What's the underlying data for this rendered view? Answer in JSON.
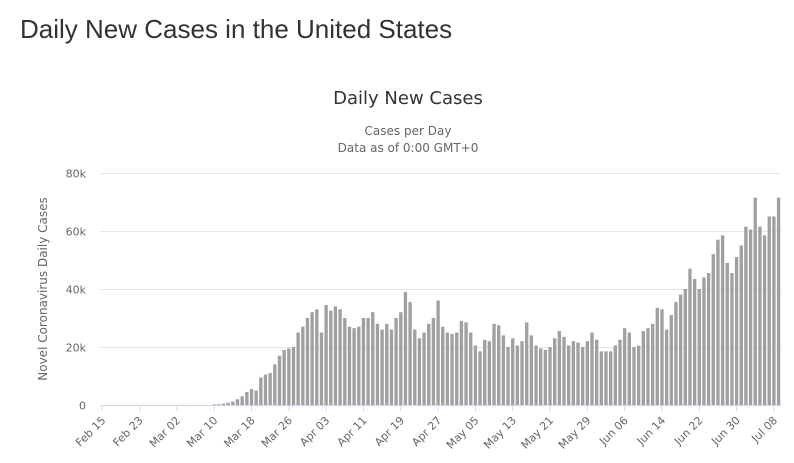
{
  "page": {
    "heading": "Daily New Cases in the United States"
  },
  "chart_data": {
    "type": "bar",
    "title": "Daily New Cases",
    "subtitle_lines": [
      "Cases per Day",
      "Data as of 0:00 GMT+0"
    ],
    "xlabel": "",
    "ylabel": "Novel Coronavirus Daily Cases",
    "ylim": [
      0,
      80000
    ],
    "yticks": [
      0,
      20000,
      40000,
      60000,
      80000
    ],
    "ytick_labels": [
      "0",
      "20k",
      "40k",
      "60k",
      "80k"
    ],
    "grid": true,
    "bar_color": "#a0a0a0",
    "grid_color": "#e6e6e6",
    "start_date": "Feb 15",
    "xtick_labels": [
      "Feb 15",
      "Feb 23",
      "Mar 02",
      "Mar 10",
      "Mar 18",
      "Mar 26",
      "Apr 03",
      "Apr 11",
      "Apr 19",
      "Apr 27",
      "May 05",
      "May 13",
      "May 21",
      "May 29",
      "Jun 06",
      "Jun 14",
      "Jun 22",
      "Jun 30",
      "Jul 08"
    ],
    "xtick_every_days": 8,
    "values": [
      0,
      0,
      0,
      0,
      0,
      0,
      0,
      0,
      0,
      0,
      0,
      0,
      0,
      0,
      0,
      0,
      0,
      0,
      0,
      0,
      0,
      0,
      0,
      0,
      200,
      300,
      500,
      800,
      1200,
      2000,
      3000,
      4500,
      5500,
      5000,
      9500,
      10500,
      11000,
      14000,
      17000,
      19000,
      19500,
      20000,
      25000,
      27000,
      30000,
      32000,
      33000,
      25000,
      34500,
      32500,
      34000,
      33000,
      30000,
      27000,
      26500,
      27000,
      30000,
      30000,
      32000,
      28000,
      26000,
      28000,
      26000,
      30000,
      32000,
      39000,
      35500,
      26000,
      23000,
      25000,
      28000,
      30000,
      36000,
      27000,
      25000,
      24500,
      25000,
      29000,
      28500,
      25000,
      20500,
      18500,
      22500,
      22000,
      28000,
      27500,
      24000,
      20000,
      23000,
      20500,
      22000,
      28500,
      24000,
      20500,
      19500,
      19000,
      20000,
      23000,
      25500,
      23500,
      20500,
      22000,
      21500,
      20000,
      22000,
      25000,
      22500,
      18500,
      18500,
      18500,
      20500,
      22500,
      26500,
      25000,
      20000,
      20500,
      25500,
      26500,
      28000,
      33500,
      33000,
      26000,
      31000,
      35500,
      38000,
      40000,
      47000,
      43500,
      40000,
      44000,
      45500,
      52000,
      57000,
      58500,
      49000,
      45500,
      51000,
      55000,
      61500,
      60500,
      71500,
      61500,
      58500,
      65000,
      65000,
      71500
    ]
  }
}
